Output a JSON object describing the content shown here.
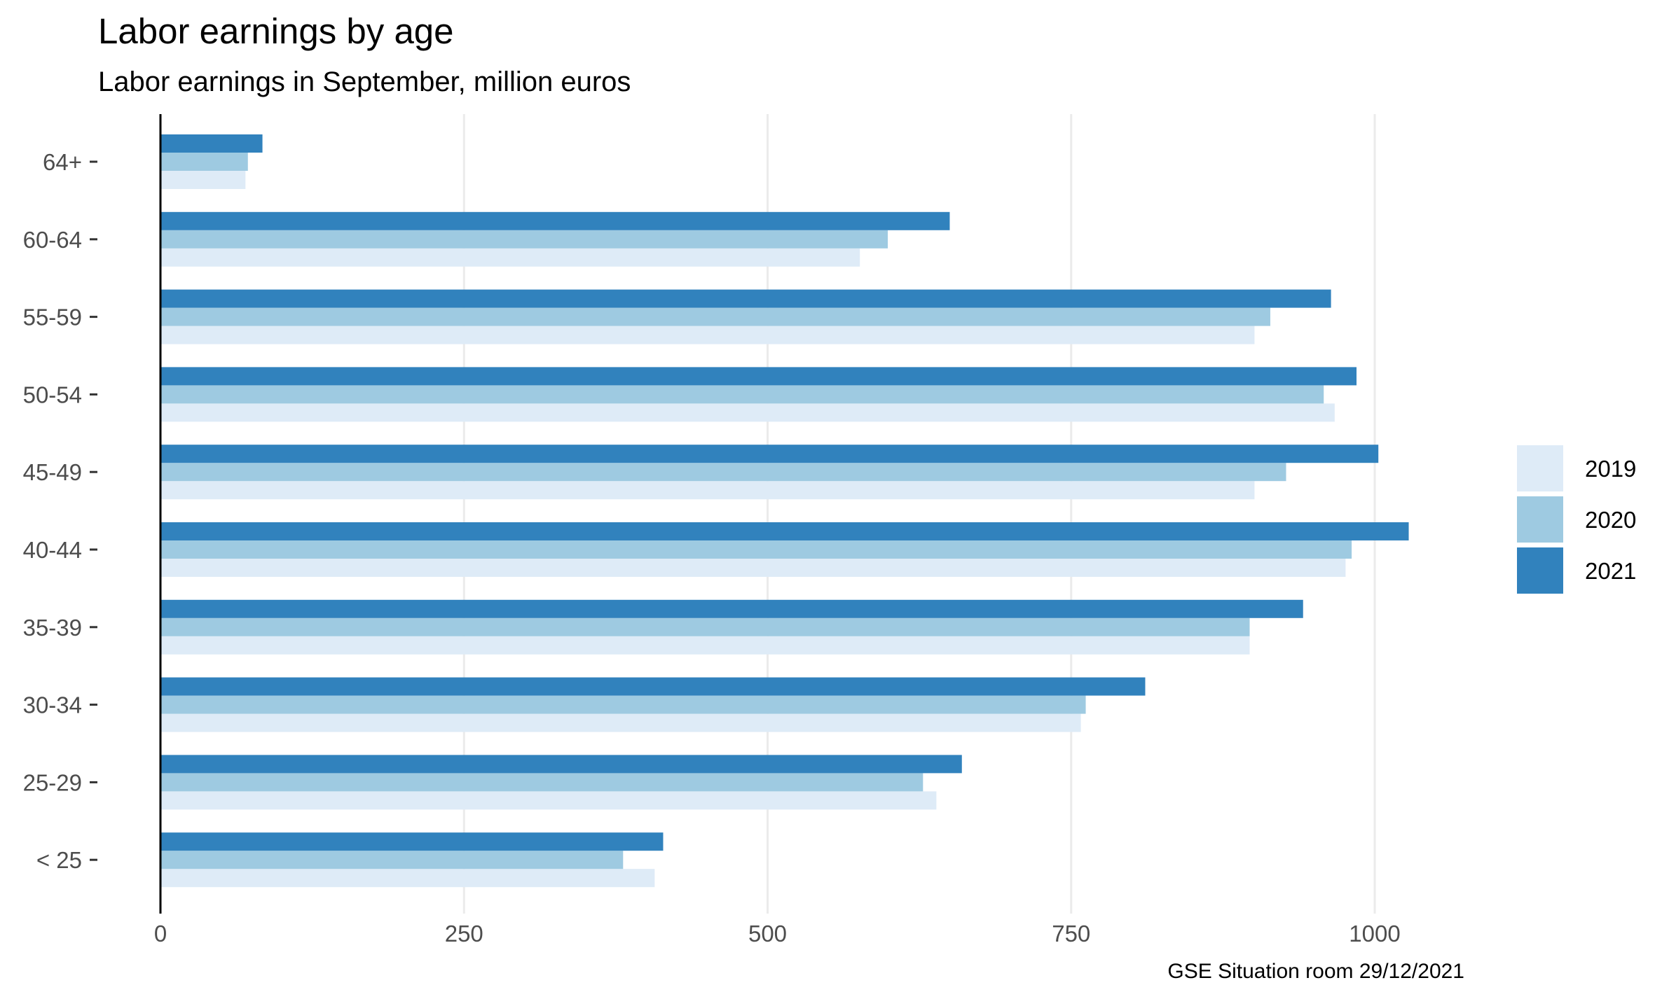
{
  "chart_data": {
    "type": "bar",
    "orientation": "horizontal",
    "title": "Labor earnings by age",
    "subtitle": "Labor earnings in September, million euros",
    "caption": "GSE Situation room 29/12/2021",
    "categories": [
      "64+",
      "60-64",
      "55-59",
      "50-54",
      "45-49",
      "40-44",
      "35-39",
      "30-34",
      "25-29",
      "< 25"
    ],
    "series": [
      {
        "name": "2019",
        "color": "#deebf7",
        "values": [
          70,
          576,
          901,
          967,
          901,
          976,
          897,
          758,
          639,
          407
        ]
      },
      {
        "name": "2020",
        "color": "#9ecae1",
        "values": [
          72,
          599,
          914,
          958,
          927,
          981,
          897,
          762,
          628,
          381
        ]
      },
      {
        "name": "2021",
        "color": "#3182bd",
        "values": [
          84,
          650,
          964,
          985,
          1003,
          1028,
          941,
          811,
          660,
          414
        ]
      }
    ],
    "x_axis": {
      "ticks": [
        0,
        250,
        500,
        750,
        1000
      ],
      "xlim": [
        0,
        1135
      ],
      "grid": true
    },
    "legend": {
      "position": "right"
    }
  }
}
